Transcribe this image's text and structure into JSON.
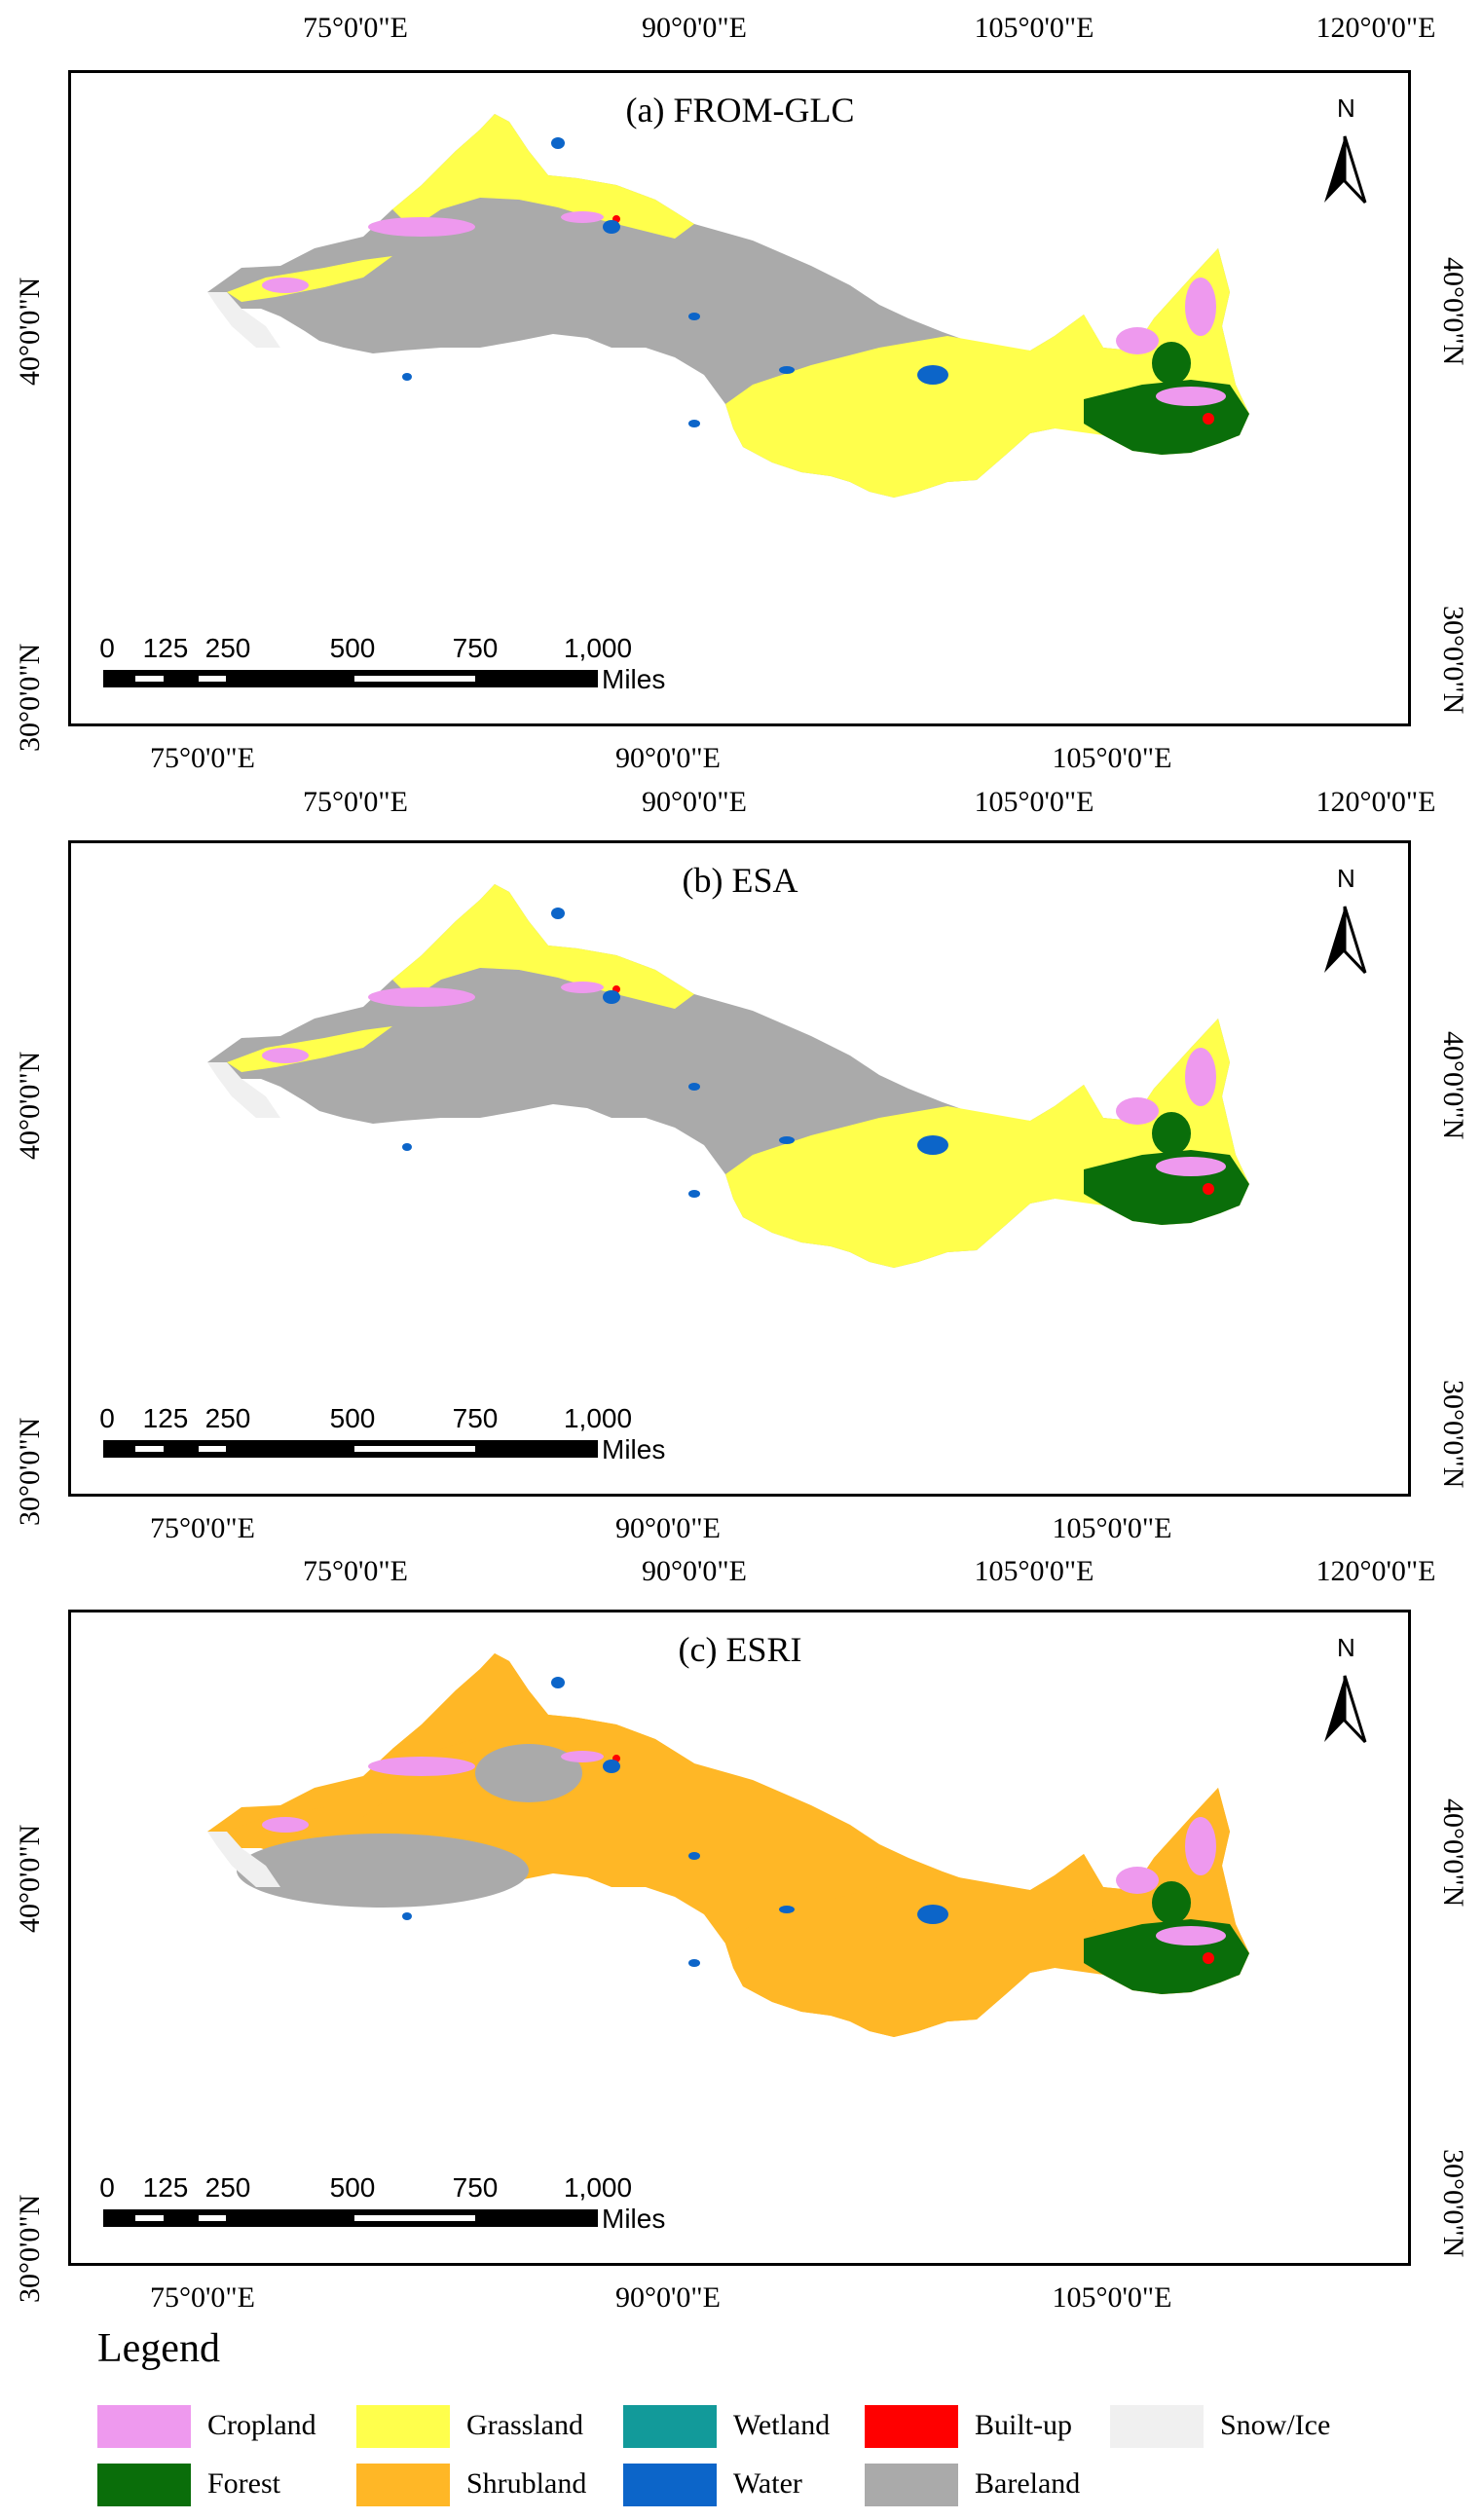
{
  "panels": [
    {
      "title": "(a) FROM-GLC",
      "lon_top": [
        "75°0'0\"E",
        "90°0'0\"E",
        "105°0'0\"E",
        "120°0'0\"E"
      ],
      "lon_bottom": [
        "75°0'0\"E",
        "90°0'0\"E",
        "105°0'0\"E"
      ],
      "lat_left": [
        "40°0'0\"N",
        "30°0'0\"N"
      ],
      "lat_right": [
        "40°0'0\"N",
        "30°0'0\"N"
      ],
      "palette": "glc"
    },
    {
      "title": "(b) ESA",
      "lon_top": [
        "75°0'0\"E",
        "90°0'0\"E",
        "105°0'0\"E",
        "120°0'0\"E"
      ],
      "lon_bottom": [
        "75°0'0\"E",
        "90°0'0\"E",
        "105°0'0\"E"
      ],
      "lat_left": [
        "40°0'0\"N",
        "30°0'0\"N"
      ],
      "lat_right": [
        "40°0'0\"N",
        "30°0'0\"N"
      ],
      "palette": "esa"
    },
    {
      "title": "(c) ESRI",
      "lon_top": [
        "75°0'0\"E",
        "90°0'0\"E",
        "105°0'0\"E",
        "120°0'0\"E"
      ],
      "lon_bottom": [
        "75°0'0\"E",
        "90°0'0\"E",
        "105°0'0\"E"
      ],
      "lat_left": [
        "40°0'0\"N",
        "30°0'0\"N"
      ],
      "lat_right": [
        "40°0'0\"N",
        "30°0'0\"N"
      ],
      "palette": "esri"
    }
  ],
  "north_arrow": {
    "label": "N"
  },
  "scale_bar": {
    "labels": [
      "0",
      "125",
      "250",
      "500",
      "750",
      "1,000"
    ],
    "unit": "Miles"
  },
  "legend": {
    "title": "Legend",
    "items": [
      {
        "label": "Cropland",
        "color": "#ee99ee"
      },
      {
        "label": "Grassland",
        "color": "#ffff4c"
      },
      {
        "label": "Wetland",
        "color": "#129a9a"
      },
      {
        "label": "Built-up",
        "color": "#ff0000"
      },
      {
        "label": "Snow/Ice",
        "color": "#f0f0f0"
      },
      {
        "label": "Forest",
        "color": "#0a6e0a"
      },
      {
        "label": "Shrubland",
        "color": "#ffb726"
      },
      {
        "label": "Water",
        "color": "#0c65c9"
      },
      {
        "label": "Bareland",
        "color": "#aaaaaa"
      }
    ]
  }
}
